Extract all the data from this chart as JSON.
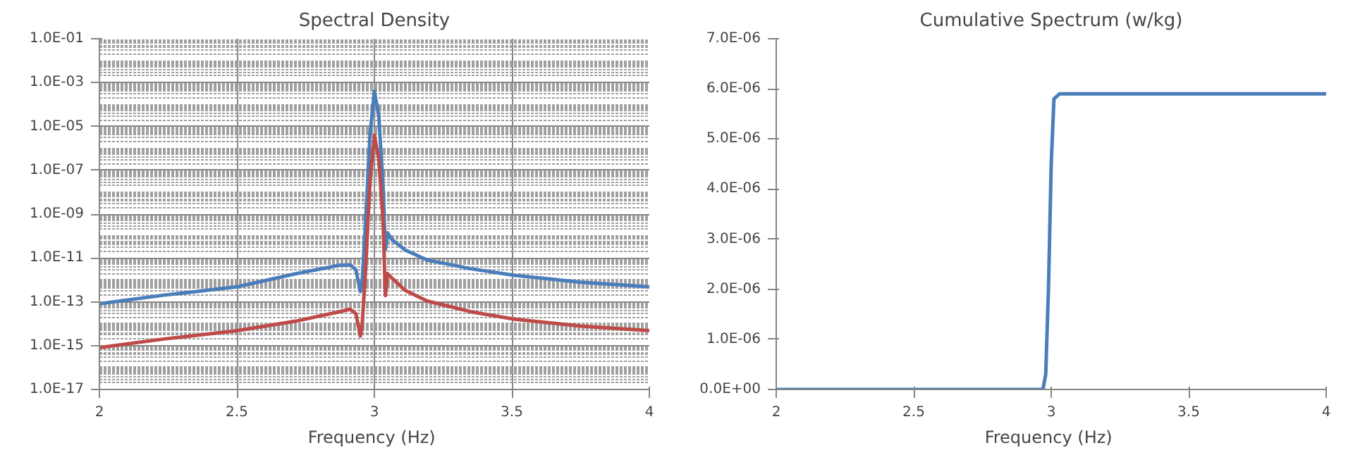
{
  "chart_data": [
    {
      "type": "line",
      "title": "Spectral Density",
      "xlabel": "Frequency  (Hz)",
      "log": "y",
      "grid": true,
      "x": [
        2.0,
        2.234,
        2.501,
        2.713,
        2.872,
        2.912,
        2.933,
        2.949,
        2.955,
        2.968,
        2.984,
        3.0,
        3.016,
        3.032,
        3.04,
        3.048,
        3.064,
        3.112,
        3.191,
        3.351,
        3.51,
        3.75,
        4.0
      ],
      "series": [
        {
          "color": "#4a7ebb",
          "values": [
            8.1e-14,
            2e-13,
            4.8e-13,
            1.9e-12,
            4.6e-12,
            4.9e-12,
            2.8e-12,
            2.9e-13,
            6.8e-13,
            4e-10,
            4e-06,
            0.0004,
            3.3e-05,
            1.4e-08,
            2.3e-11,
            1.4e-10,
            6.8e-11,
            2.3e-11,
            8.1e-12,
            3.2e-12,
            1.6e-12,
            7.8e-13,
            4.8e-13
          ]
        },
        {
          "color": "#be4b48",
          "values": [
            8.1e-16,
            2e-15,
            4.8e-15,
            1.3e-14,
            3.5e-14,
            4.6e-14,
            2.8e-14,
            2.7e-15,
            6.8e-15,
            2.8e-12,
            2.8e-08,
            4e-06,
            3.3e-07,
            4e-10,
            1.9e-13,
            1.95e-12,
            1.2e-12,
            3.3e-13,
            1.1e-13,
            3.5e-14,
            1.6e-14,
            7.8e-15,
            4.8e-15
          ]
        }
      ],
      "xlim": [
        2,
        4
      ],
      "xticks": [
        2,
        2.5,
        3,
        3.5,
        4
      ],
      "ylim": [
        1e-17,
        0.1
      ],
      "yticks": [
        {
          "value": 1e-17,
          "label": "1.0E-17"
        },
        {
          "value": 1e-15,
          "label": "1.0E-15"
        },
        {
          "value": 1e-13,
          "label": "1.0E-13"
        },
        {
          "value": 1e-11,
          "label": "1.0E-11"
        },
        {
          "value": 1e-09,
          "label": "1.0E-09"
        },
        {
          "value": 1e-07,
          "label": "1.0E-07"
        },
        {
          "value": 1e-05,
          "label": "1.0E-05"
        },
        {
          "value": 0.001,
          "label": "1.0E-03"
        },
        {
          "value": 0.1,
          "label": "1.0E-01"
        }
      ]
    },
    {
      "type": "line",
      "title": "Cumulative Spectrum (w/kg)",
      "xlabel": "Frequency  (Hz)",
      "grid": false,
      "x": [
        2.0,
        2.97,
        2.98,
        2.99,
        3.0,
        3.01,
        3.03,
        4.0
      ],
      "series": [
        {
          "color": "#4a7ebb",
          "values": [
            0,
            0,
            3e-07,
            2e-06,
            4.5e-06,
            5.8e-06,
            5.9e-06,
            5.9e-06
          ]
        }
      ],
      "xlim": [
        2,
        4
      ],
      "xticks": [
        2,
        2.5,
        3,
        3.5,
        4
      ],
      "ylim": [
        0,
        7e-06
      ],
      "yticks": [
        {
          "value": 0,
          "label": "0.0E+00"
        },
        {
          "value": 1e-06,
          "label": "1.0E-06"
        },
        {
          "value": 2e-06,
          "label": "2.0E-06"
        },
        {
          "value": 3e-06,
          "label": "3.0E-06"
        },
        {
          "value": 4e-06,
          "label": "4.0E-06"
        },
        {
          "value": 5e-06,
          "label": "5.0E-06"
        },
        {
          "value": 6e-06,
          "label": "6.0E-06"
        },
        {
          "value": 7e-06,
          "label": "7.0E-06"
        }
      ]
    }
  ]
}
